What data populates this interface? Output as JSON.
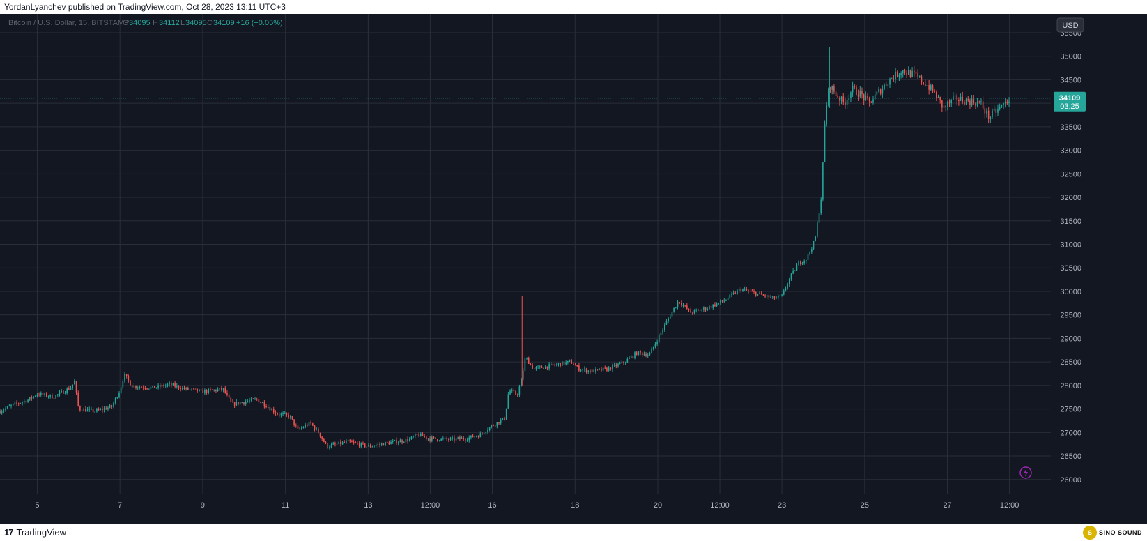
{
  "header": {
    "published_by": "YordanLyanchev published on TradingView.com, Oct 28, 2023 13:11 UTC+3"
  },
  "legend": {
    "symbol": "Bitcoin / U.S. Dollar, 15, BITSTAMP",
    "o_label": "O",
    "o_value": "34095",
    "h_label": "H",
    "h_value": "34112",
    "l_label": "L",
    "l_value": "34095",
    "c_label": "C",
    "c_value": "34109",
    "change": "+16 (+0.05%)"
  },
  "price_axis": {
    "currency_button": "USD",
    "last_price": "34109",
    "countdown": "03:25"
  },
  "footer": {
    "brand_mark": "17",
    "brand": "TradingView",
    "watermark": "SINO SOUND"
  },
  "colors": {
    "background": "#131722",
    "grid": "#2a2e39",
    "up": "#26a69a",
    "down": "#ef5350",
    "legend_value": "#26a69a",
    "lightning": "#9c27b0"
  },
  "chart_data": {
    "type": "candlestick",
    "title": "Bitcoin / U.S. Dollar, 15, BITSTAMP",
    "ylim": [
      25700,
      35900
    ],
    "y_ticks": [
      26000,
      26500,
      27000,
      27500,
      28000,
      28500,
      29000,
      29500,
      30000,
      30500,
      31000,
      31500,
      32000,
      32500,
      33000,
      33500,
      34000,
      34500,
      35000,
      35500
    ],
    "x_ticks": [
      "5",
      "7",
      "9",
      "11",
      "13",
      "12:00",
      "16",
      "18",
      "20",
      "12:00",
      "23",
      "25",
      "27",
      "12:00"
    ],
    "x_tick_days": [
      5,
      7,
      9,
      11,
      13,
      14.5,
      16,
      18,
      20,
      21.5,
      23,
      25,
      27,
      28.5
    ],
    "x_range": [
      4.1,
      29.5
    ],
    "last_day": 28.5,
    "current_price": 34109,
    "series": [
      {
        "name": "BTC/USD",
        "points": [
          [
            4.1,
            27450
          ],
          [
            4.4,
            27580
          ],
          [
            4.8,
            27700
          ],
          [
            5.0,
            27820
          ],
          [
            5.4,
            27760
          ],
          [
            5.8,
            27950
          ],
          [
            5.9,
            28080
          ],
          [
            6.0,
            27500
          ],
          [
            6.4,
            27450
          ],
          [
            6.8,
            27550
          ],
          [
            7.0,
            27900
          ],
          [
            7.1,
            28220
          ],
          [
            7.3,
            27990
          ],
          [
            7.8,
            27950
          ],
          [
            8.2,
            28020
          ],
          [
            8.6,
            27920
          ],
          [
            9.0,
            27870
          ],
          [
            9.5,
            27920
          ],
          [
            9.7,
            27600
          ],
          [
            10.0,
            27650
          ],
          [
            10.3,
            27700
          ],
          [
            10.5,
            27600
          ],
          [
            10.8,
            27400
          ],
          [
            11.1,
            27350
          ],
          [
            11.3,
            27050
          ],
          [
            11.6,
            27200
          ],
          [
            11.8,
            27000
          ],
          [
            12.0,
            26700
          ],
          [
            12.5,
            26800
          ],
          [
            13.0,
            26700
          ],
          [
            13.5,
            26780
          ],
          [
            14.0,
            26850
          ],
          [
            14.2,
            26950
          ],
          [
            14.5,
            26870
          ],
          [
            15.0,
            26850
          ],
          [
            15.4,
            26880
          ],
          [
            15.7,
            26950
          ],
          [
            16.0,
            27150
          ],
          [
            16.3,
            27300
          ],
          [
            16.4,
            27900
          ],
          [
            16.6,
            27800
          ],
          [
            16.7,
            28100
          ],
          [
            16.8,
            28600
          ],
          [
            17.0,
            28350
          ],
          [
            17.3,
            28400
          ],
          [
            17.6,
            28450
          ],
          [
            17.9,
            28500
          ],
          [
            18.1,
            28350
          ],
          [
            18.4,
            28300
          ],
          [
            18.8,
            28350
          ],
          [
            19.2,
            28500
          ],
          [
            19.5,
            28700
          ],
          [
            19.8,
            28650
          ],
          [
            20.0,
            29000
          ],
          [
            20.3,
            29500
          ],
          [
            20.5,
            29800
          ],
          [
            20.8,
            29550
          ],
          [
            21.2,
            29650
          ],
          [
            21.6,
            29800
          ],
          [
            22.0,
            30050
          ],
          [
            22.4,
            29950
          ],
          [
            22.8,
            29850
          ],
          [
            23.0,
            29900
          ],
          [
            23.2,
            30300
          ],
          [
            23.4,
            30600
          ],
          [
            23.6,
            30700
          ],
          [
            23.8,
            31100
          ],
          [
            23.95,
            32000
          ],
          [
            24.05,
            33800
          ],
          [
            24.15,
            34400
          ],
          [
            24.3,
            34200
          ],
          [
            24.5,
            34000
          ],
          [
            24.7,
            34300
          ],
          [
            24.9,
            34200
          ],
          [
            25.1,
            34000
          ],
          [
            25.3,
            34200
          ],
          [
            25.6,
            34500
          ],
          [
            25.9,
            34700
          ],
          [
            26.2,
            34600
          ],
          [
            26.5,
            34400
          ],
          [
            26.7,
            34200
          ],
          [
            26.9,
            33900
          ],
          [
            27.2,
            34100
          ],
          [
            27.5,
            34050
          ],
          [
            27.8,
            34000
          ],
          [
            28.0,
            33700
          ],
          [
            28.2,
            33850
          ],
          [
            28.4,
            34000
          ],
          [
            28.5,
            34109
          ]
        ]
      }
    ]
  }
}
